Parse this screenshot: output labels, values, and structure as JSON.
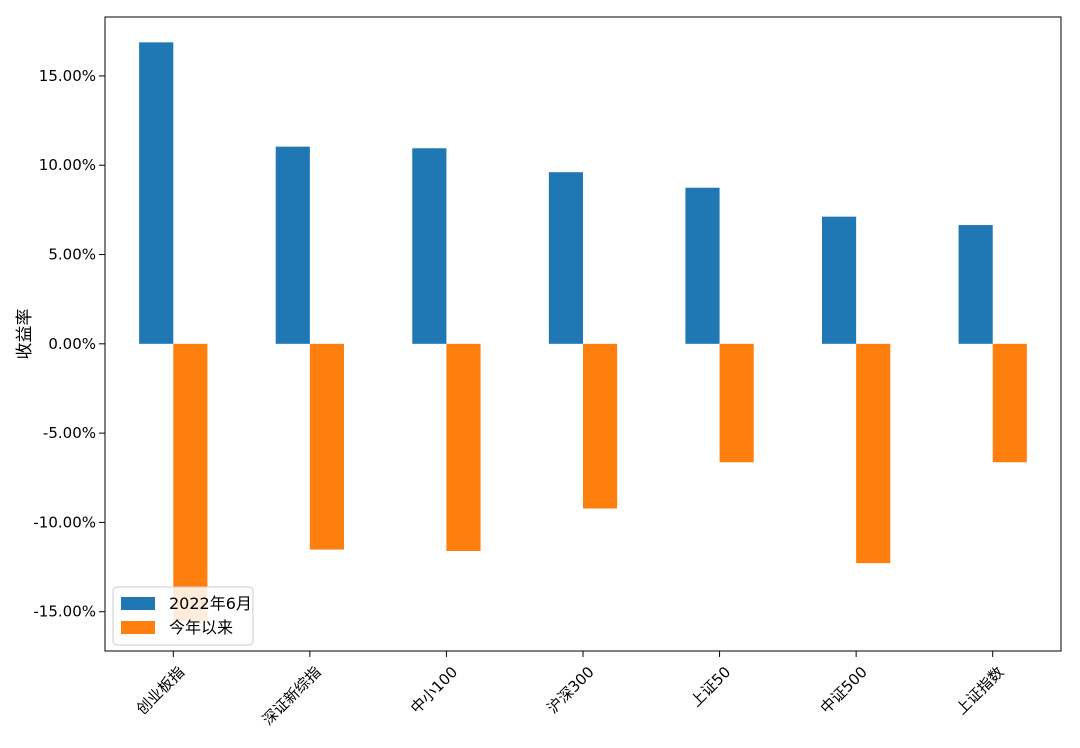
{
  "chart_data": {
    "type": "bar",
    "categories": [
      "创业板指",
      "深证新综指",
      "中小100",
      "沪深300",
      "上证50",
      "中证500",
      "上证指数"
    ],
    "series": [
      {
        "name": "2022年6月",
        "color": "#1f77b4",
        "values": [
          16.88,
          11.04,
          10.95,
          9.61,
          8.74,
          7.12,
          6.65
        ]
      },
      {
        "name": "今年以来",
        "color": "#ff7f0e",
        "values": [
          -15.5,
          -11.52,
          -11.6,
          -9.22,
          -6.63,
          -12.28,
          -6.63
        ]
      }
    ],
    "title": "",
    "xlabel": "",
    "ylabel": "收益率",
    "ylim": [
      -17.2,
      18.3
    ],
    "yticks": [
      15,
      10,
      5,
      0,
      -5,
      -10,
      -15
    ],
    "ytick_labels": [
      "15.00%",
      "10.00%",
      "5.00%",
      "0.00%",
      "-5.00%",
      "-10.00%",
      "-15.00%"
    ],
    "legend_position": "lower-left",
    "grid": false
  }
}
